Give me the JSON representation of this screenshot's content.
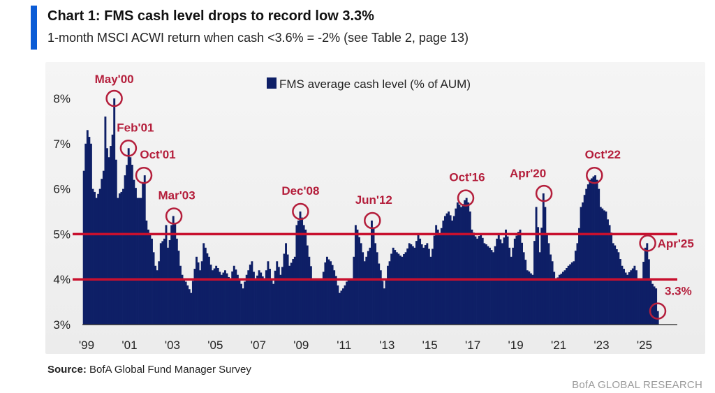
{
  "header": {
    "title": "Chart 1: FMS cash level drops to record low 3.3%",
    "subtitle": "1-month MSCI ACWI return when cash <3.6% = -2% (see Table 2, page 13)"
  },
  "footer": {
    "source_label": "Source:",
    "source_text": "BofA Global Fund Manager Survey",
    "brand": "BofA GLOBAL RESEARCH"
  },
  "colors": {
    "bar": "#0e1f66",
    "threshold": "#c8102e",
    "annotation": "#b41e3b",
    "accent": "#0b5cd6"
  },
  "chart_data": {
    "type": "bar",
    "title": "Chart 1: FMS cash level drops to record low 3.3%",
    "legend": {
      "label": "FMS average cash level (% of AUM)",
      "position": "top-center"
    },
    "x_range": [
      1999.0,
      2025.75
    ],
    "ylim": [
      3,
      8
    ],
    "y_ticks": [
      {
        "value": 3,
        "label": "3%"
      },
      {
        "value": 4,
        "label": "4%"
      },
      {
        "value": 5,
        "label": "5%"
      },
      {
        "value": 6,
        "label": "6%"
      },
      {
        "value": 7,
        "label": "7%"
      },
      {
        "value": 8,
        "label": "8%"
      }
    ],
    "x_ticks": [
      {
        "value": 1999,
        "label": "'99"
      },
      {
        "value": 2001,
        "label": "'01"
      },
      {
        "value": 2003,
        "label": "'03"
      },
      {
        "value": 2005,
        "label": "'05"
      },
      {
        "value": 2007,
        "label": "'07"
      },
      {
        "value": 2009,
        "label": "'09"
      },
      {
        "value": 2011,
        "label": "'11"
      },
      {
        "value": 2013,
        "label": "'13"
      },
      {
        "value": 2015,
        "label": "'15"
      },
      {
        "value": 2017,
        "label": "'17"
      },
      {
        "value": 2019,
        "label": "'19"
      },
      {
        "value": 2021,
        "label": "'21"
      },
      {
        "value": 2023,
        "label": "'23"
      },
      {
        "value": 2025,
        "label": "'25"
      }
    ],
    "reference_lines": [
      5.0,
      4.0
    ],
    "grid": false,
    "anchors": [
      [
        1999.0,
        6.4
      ],
      [
        1999.1,
        7.0
      ],
      [
        1999.2,
        7.3
      ],
      [
        1999.3,
        7.0
      ],
      [
        1999.45,
        6.0
      ],
      [
        1999.6,
        5.8
      ],
      [
        1999.75,
        6.0
      ],
      [
        1999.9,
        6.4
      ],
      [
        2000.0,
        7.6
      ],
      [
        2000.1,
        6.9
      ],
      [
        2000.2,
        6.7
      ],
      [
        2000.3,
        7.2
      ],
      [
        2000.42,
        8.0
      ],
      [
        2000.55,
        5.8
      ],
      [
        2000.7,
        5.9
      ],
      [
        2000.85,
        6.0
      ],
      [
        2000.95,
        6.3
      ],
      [
        2001.08,
        6.9
      ],
      [
        2001.2,
        6.7
      ],
      [
        2001.35,
        6.2
      ],
      [
        2001.5,
        5.8
      ],
      [
        2001.65,
        5.8
      ],
      [
        2001.8,
        6.3
      ],
      [
        2001.9,
        5.3
      ],
      [
        2002.05,
        5.0
      ],
      [
        2002.2,
        4.9
      ],
      [
        2002.3,
        4.3
      ],
      [
        2002.45,
        4.2
      ],
      [
        2002.6,
        4.8
      ],
      [
        2002.75,
        4.9
      ],
      [
        2002.85,
        5.2
      ],
      [
        2002.95,
        4.7
      ],
      [
        2003.1,
        5.2
      ],
      [
        2003.2,
        5.4
      ],
      [
        2003.35,
        4.9
      ],
      [
        2003.55,
        4.1
      ],
      [
        2003.7,
        4.0
      ],
      [
        2004.0,
        3.7
      ],
      [
        2004.25,
        4.5
      ],
      [
        2004.45,
        4.2
      ],
      [
        2004.6,
        4.8
      ],
      [
        2004.8,
        4.5
      ],
      [
        2005.0,
        4.2
      ],
      [
        2005.2,
        4.3
      ],
      [
        2005.4,
        4.1
      ],
      [
        2005.6,
        4.2
      ],
      [
        2005.8,
        4.0
      ],
      [
        2006.0,
        4.3
      ],
      [
        2006.2,
        4.1
      ],
      [
        2006.4,
        3.8
      ],
      [
        2006.6,
        4.1
      ],
      [
        2006.8,
        4.4
      ],
      [
        2007.0,
        4.0
      ],
      [
        2007.2,
        4.2
      ],
      [
        2007.4,
        4.0
      ],
      [
        2007.6,
        4.4
      ],
      [
        2007.8,
        3.9
      ],
      [
        2008.0,
        4.4
      ],
      [
        2008.2,
        4.1
      ],
      [
        2008.4,
        4.8
      ],
      [
        2008.6,
        4.3
      ],
      [
        2008.8,
        4.5
      ],
      [
        2008.95,
        5.2
      ],
      [
        2009.1,
        5.5
      ],
      [
        2009.3,
        5.1
      ],
      [
        2009.5,
        4.5
      ],
      [
        2009.7,
        4.0
      ],
      [
        2009.9,
        4.0
      ],
      [
        2010.1,
        4.0
      ],
      [
        2010.3,
        4.5
      ],
      [
        2010.5,
        4.4
      ],
      [
        2010.7,
        4.2
      ],
      [
        2010.9,
        3.7
      ],
      [
        2011.1,
        3.8
      ],
      [
        2011.3,
        4.0
      ],
      [
        2011.5,
        4.0
      ],
      [
        2011.7,
        5.2
      ],
      [
        2011.9,
        4.8
      ],
      [
        2012.1,
        4.4
      ],
      [
        2012.3,
        4.7
      ],
      [
        2012.45,
        5.3
      ],
      [
        2012.6,
        4.8
      ],
      [
        2012.8,
        4.2
      ],
      [
        2013.0,
        3.8
      ],
      [
        2013.2,
        4.3
      ],
      [
        2013.4,
        4.7
      ],
      [
        2013.6,
        4.6
      ],
      [
        2013.8,
        4.5
      ],
      [
        2014.0,
        4.6
      ],
      [
        2014.2,
        4.8
      ],
      [
        2014.4,
        4.7
      ],
      [
        2014.6,
        5.0
      ],
      [
        2014.8,
        4.7
      ],
      [
        2015.0,
        4.8
      ],
      [
        2015.2,
        4.5
      ],
      [
        2015.4,
        5.2
      ],
      [
        2015.6,
        5.0
      ],
      [
        2015.8,
        5.4
      ],
      [
        2016.0,
        5.5
      ],
      [
        2016.2,
        5.3
      ],
      [
        2016.4,
        5.7
      ],
      [
        2016.6,
        5.6
      ],
      [
        2016.8,
        5.8
      ],
      [
        2016.95,
        5.7
      ],
      [
        2017.1,
        5.1
      ],
      [
        2017.3,
        4.9
      ],
      [
        2017.5,
        5.0
      ],
      [
        2017.7,
        4.8
      ],
      [
        2017.9,
        4.7
      ],
      [
        2018.1,
        4.6
      ],
      [
        2018.3,
        5.0
      ],
      [
        2018.5,
        4.8
      ],
      [
        2018.7,
        5.1
      ],
      [
        2018.9,
        4.5
      ],
      [
        2019.1,
        4.9
      ],
      [
        2019.3,
        5.1
      ],
      [
        2019.5,
        4.6
      ],
      [
        2019.7,
        4.2
      ],
      [
        2019.9,
        4.1
      ],
      [
        2020.1,
        5.6
      ],
      [
        2020.25,
        4.6
      ],
      [
        2020.45,
        5.9
      ],
      [
        2020.6,
        5.0
      ],
      [
        2020.8,
        4.4
      ],
      [
        2021.0,
        4.0
      ],
      [
        2021.2,
        4.1
      ],
      [
        2021.4,
        4.2
      ],
      [
        2021.6,
        4.3
      ],
      [
        2021.8,
        4.4
      ],
      [
        2022.0,
        4.8
      ],
      [
        2022.2,
        5.6
      ],
      [
        2022.4,
        6.0
      ],
      [
        2022.6,
        6.2
      ],
      [
        2022.8,
        6.3
      ],
      [
        2022.95,
        6.2
      ],
      [
        2023.1,
        5.6
      ],
      [
        2023.3,
        5.5
      ],
      [
        2023.5,
        5.2
      ],
      [
        2023.7,
        4.8
      ],
      [
        2023.9,
        4.6
      ],
      [
        2024.1,
        4.3
      ],
      [
        2024.3,
        4.1
      ],
      [
        2024.5,
        4.2
      ],
      [
        2024.7,
        4.3
      ],
      [
        2024.85,
        4.0
      ],
      [
        2025.0,
        4.0
      ],
      [
        2025.15,
        4.7
      ],
      [
        2025.28,
        4.8
      ],
      [
        2025.4,
        4.0
      ],
      [
        2025.52,
        3.9
      ],
      [
        2025.63,
        3.8
      ],
      [
        2025.75,
        3.3
      ]
    ],
    "annotations": [
      {
        "label": "May'00",
        "x": 2000.42,
        "y": 8.0
      },
      {
        "label": "Feb'01",
        "x": 2001.08,
        "y": 6.9
      },
      {
        "label": "Oct'01",
        "x": 2001.8,
        "y": 6.3
      },
      {
        "label": "Mar'03",
        "x": 2003.2,
        "y": 5.4
      },
      {
        "label": "Dec'08",
        "x": 2009.1,
        "y": 5.5
      },
      {
        "label": "Jun'12",
        "x": 2012.45,
        "y": 5.3
      },
      {
        "label": "Oct'16",
        "x": 2016.8,
        "y": 5.8
      },
      {
        "label": "Apr'20",
        "x": 2020.45,
        "y": 5.9
      },
      {
        "label": "Oct'22",
        "x": 2022.8,
        "y": 6.3
      },
      {
        "label": "Apr'25",
        "x": 2025.28,
        "y": 4.8
      },
      {
        "label": "3.3%",
        "x": 2025.75,
        "y": 3.3
      }
    ]
  }
}
